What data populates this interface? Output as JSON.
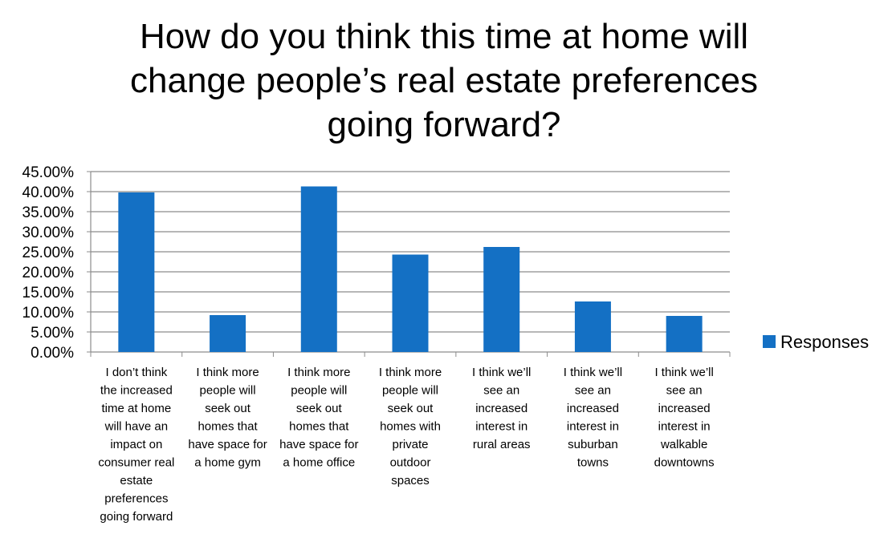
{
  "title_lines": [
    "How do you think this time at home will",
    "change people’s real estate preferences",
    "going forward?"
  ],
  "chart_data": {
    "type": "bar",
    "title": "How do you think this time at home will change people’s real estate preferences going forward?",
    "categories": [
      [
        "I don’t think",
        "the increased",
        "time at home",
        "will have an",
        "impact on",
        "consumer real",
        "estate",
        "preferences",
        "going forward"
      ],
      [
        "I think more",
        "people will",
        "seek out",
        "homes that",
        "have space for",
        "a home gym"
      ],
      [
        "I think more",
        "people will",
        "seek out",
        "homes that",
        "have space for",
        "a home office"
      ],
      [
        "I think more",
        "people will",
        "seek out",
        "homes with",
        "private",
        "outdoor",
        "spaces"
      ],
      [
        "I think we’ll",
        "see an",
        "increased",
        "interest in",
        "rural areas"
      ],
      [
        "I think we’ll",
        "see an",
        "increased",
        "interest in",
        "suburban",
        "towns"
      ],
      [
        "I think we’ll",
        "see an",
        "increased",
        "interest in",
        "walkable",
        "downtowns"
      ]
    ],
    "series": [
      {
        "name": "Responses",
        "values": [
          39.8,
          9.2,
          41.3,
          24.3,
          26.2,
          12.6,
          9.0
        ]
      }
    ],
    "ylim": [
      0,
      45
    ],
    "yticks": [
      "0.00%",
      "5.00%",
      "10.00%",
      "15.00%",
      "20.00%",
      "25.00%",
      "30.00%",
      "35.00%",
      "40.00%",
      "45.00%"
    ],
    "grid": true,
    "legend": "right",
    "color": "#1470C4"
  }
}
